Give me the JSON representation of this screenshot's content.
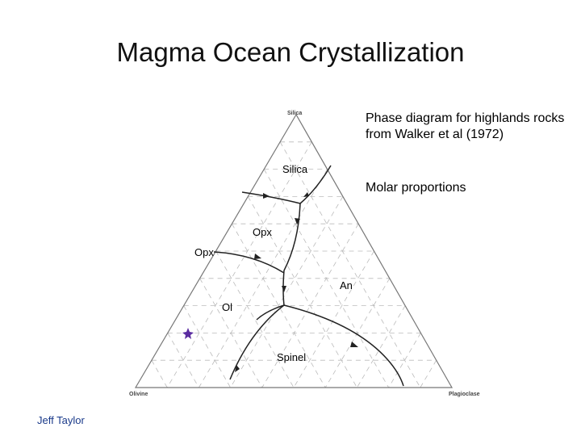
{
  "header": {
    "title": "Magma Ocean Crystallization"
  },
  "caption": {
    "description": "Phase diagram for highlands rocks from Walker et al (1972)",
    "note": "Molar proportions"
  },
  "diagram": {
    "corners": {
      "top": "Silica",
      "left": "Olivine",
      "right": "Plagioclase"
    },
    "fields": [
      "Silica",
      "Opx",
      "Opx",
      "An",
      "Ol",
      "Spinel"
    ]
  },
  "footer": {
    "author": "Jeff Taylor"
  }
}
